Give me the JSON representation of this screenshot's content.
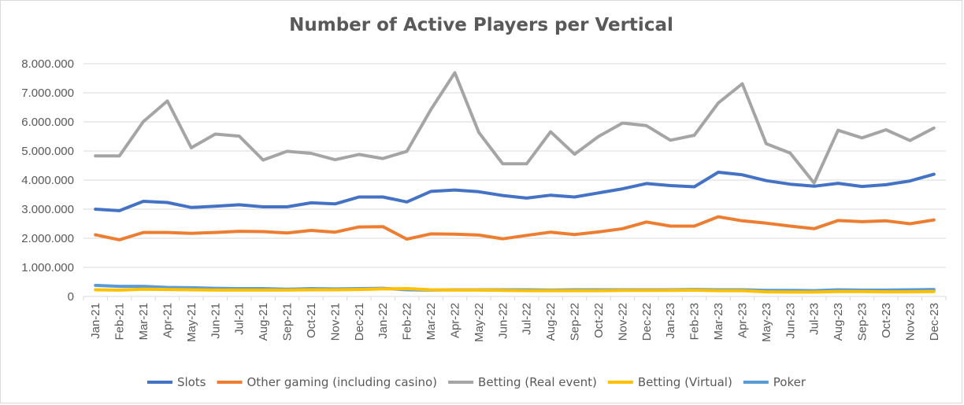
{
  "chart_data": {
    "type": "line",
    "title": "Number of Active Players per Vertical",
    "xlabel": "",
    "ylabel": "",
    "ylim": [
      0,
      8000000
    ],
    "y_ticks": [
      0,
      1000000,
      2000000,
      3000000,
      4000000,
      5000000,
      6000000,
      7000000,
      8000000
    ],
    "y_tick_labels": [
      "0",
      "1.000.000",
      "2.000.000",
      "3.000.000",
      "4.000.000",
      "5.000.000",
      "6.000.000",
      "7.000.000",
      "8.000.000"
    ],
    "grid": true,
    "legend_position": "bottom",
    "categories": [
      "Jan-21",
      "Feb-21",
      "Mar-21",
      "Apr-21",
      "May-21",
      "Jun-21",
      "Jul-21",
      "Aug-21",
      "Sep-21",
      "Oct-21",
      "Nov-21",
      "Dec-21",
      "Jan-22",
      "Feb-22",
      "Mar-22",
      "Apr-22",
      "May-22",
      "Jun-22",
      "Jul-22",
      "Aug-22",
      "Sep-22",
      "Oct-22",
      "Nov-22",
      "Dec-22",
      "Jan-23",
      "Feb-23",
      "Mar-23",
      "Apr-23",
      "May-23",
      "Jun-23",
      "Jul-23",
      "Aug-23",
      "Sep-23",
      "Oct-23",
      "Nov-23",
      "Dec-23"
    ],
    "series": [
      {
        "name": "Slots",
        "color": "#4472c4",
        "values": [
          3000000,
          2950000,
          3270000,
          3230000,
          3060000,
          3100000,
          3150000,
          3080000,
          3080000,
          3220000,
          3180000,
          3420000,
          3420000,
          3250000,
          3610000,
          3660000,
          3600000,
          3470000,
          3380000,
          3480000,
          3420000,
          3560000,
          3700000,
          3880000,
          3810000,
          3770000,
          4270000,
          4180000,
          3980000,
          3860000,
          3790000,
          3890000,
          3780000,
          3840000,
          3970000,
          4200000
        ]
      },
      {
        "name": "Other gaming (including casino)",
        "color": "#ed7d31",
        "values": [
          2120000,
          1950000,
          2200000,
          2200000,
          2170000,
          2200000,
          2240000,
          2230000,
          2180000,
          2270000,
          2210000,
          2390000,
          2400000,
          1970000,
          2150000,
          2140000,
          2110000,
          1980000,
          2100000,
          2210000,
          2130000,
          2220000,
          2330000,
          2560000,
          2420000,
          2420000,
          2740000,
          2600000,
          2520000,
          2420000,
          2330000,
          2610000,
          2570000,
          2600000,
          2500000,
          2630000
        ]
      },
      {
        "name": "Betting (Real event)",
        "color": "#a5a5a5",
        "values": [
          4830000,
          4830000,
          6010000,
          6720000,
          5110000,
          5580000,
          5510000,
          4690000,
          4990000,
          4920000,
          4700000,
          4880000,
          4740000,
          4990000,
          6420000,
          7690000,
          5640000,
          4560000,
          4560000,
          5660000,
          4890000,
          5500000,
          5960000,
          5870000,
          5370000,
          5540000,
          6650000,
          7310000,
          5250000,
          4930000,
          3900000,
          5710000,
          5450000,
          5730000,
          5360000,
          5790000
        ]
      },
      {
        "name": "Betting (Virtual)",
        "color": "#ffc000",
        "values": [
          230000,
          220000,
          250000,
          240000,
          230000,
          220000,
          220000,
          220000,
          220000,
          230000,
          230000,
          240000,
          260000,
          270000,
          230000,
          220000,
          220000,
          210000,
          200000,
          200000,
          200000,
          200000,
          210000,
          210000,
          210000,
          220000,
          200000,
          200000,
          160000,
          150000,
          150000,
          170000,
          170000,
          160000,
          160000,
          170000
        ]
      },
      {
        "name": "Poker",
        "color": "#5b9bd5",
        "values": [
          380000,
          350000,
          350000,
          310000,
          300000,
          280000,
          270000,
          270000,
          250000,
          270000,
          260000,
          270000,
          280000,
          230000,
          220000,
          230000,
          230000,
          230000,
          230000,
          220000,
          230000,
          230000,
          230000,
          230000,
          230000,
          240000,
          230000,
          230000,
          210000,
          210000,
          200000,
          230000,
          220000,
          220000,
          230000,
          240000
        ]
      }
    ]
  }
}
